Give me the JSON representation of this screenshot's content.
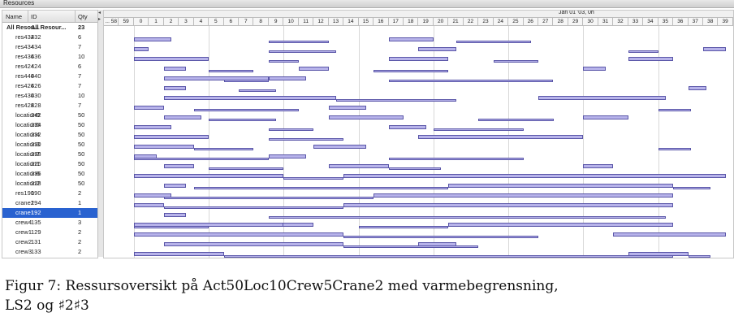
{
  "window": {
    "title": "Resources"
  },
  "table": {
    "headers": {
      "name": "Name",
      "id": "ID",
      "qty": "Qty"
    },
    "rows": [
      {
        "name": "All Resou...",
        "id": "All Resour...",
        "qty": "23",
        "bold": true
      },
      {
        "name": "res432",
        "id": "432",
        "qty": "6"
      },
      {
        "name": "res434",
        "id": "434",
        "qty": "7"
      },
      {
        "name": "res436",
        "id": "436",
        "qty": "10"
      },
      {
        "name": "res424",
        "id": "424",
        "qty": "6"
      },
      {
        "name": "res440",
        "id": "440",
        "qty": "7"
      },
      {
        "name": "res426",
        "id": "426",
        "qty": "7"
      },
      {
        "name": "res430",
        "id": "430",
        "qty": "10"
      },
      {
        "name": "res428",
        "id": "428",
        "qty": "7"
      },
      {
        "name": "location9",
        "id": "242",
        "qty": "50"
      },
      {
        "name": "location5",
        "id": "234",
        "qty": "50"
      },
      {
        "name": "location4",
        "id": "232",
        "qty": "50"
      },
      {
        "name": "location3",
        "id": "230",
        "qty": "50"
      },
      {
        "name": "location7",
        "id": "238",
        "qty": "50"
      },
      {
        "name": "location1",
        "id": "226",
        "qty": "50"
      },
      {
        "name": "location6",
        "id": "236",
        "qty": "50"
      },
      {
        "name": "location2",
        "id": "228",
        "qty": "50"
      },
      {
        "name": "res190",
        "id": "190",
        "qty": "2"
      },
      {
        "name": "crane2",
        "id": "194",
        "qty": "1"
      },
      {
        "name": "crane1",
        "id": "192",
        "qty": "1",
        "selected": true
      },
      {
        "name": "crew4",
        "id": "135",
        "qty": "3"
      },
      {
        "name": "crew1",
        "id": "129",
        "qty": "2"
      },
      {
        "name": "crew2",
        "id": "131",
        "qty": "2"
      },
      {
        "name": "crew3",
        "id": "133",
        "qty": "2"
      }
    ]
  },
  "gantt": {
    "date_label": "Jan 01 '03, 0h",
    "ticks": [
      "... 58",
      "59",
      "0",
      "1",
      "2",
      "3",
      "4",
      "5",
      "6",
      "7",
      "8",
      "9",
      "10",
      "11",
      "12",
      "13",
      "14",
      "15",
      "16",
      "17",
      "18",
      "19",
      "20",
      "21",
      "22",
      "23",
      "24",
      "25",
      "26",
      "27",
      "28",
      "29",
      "30",
      "31",
      "32",
      "33",
      "34",
      "35",
      "36",
      "37",
      "38",
      "39"
    ],
    "row_bars": [
      [],
      [
        [
          0,
          2.5
        ],
        [
          9,
          13
        ],
        [
          17,
          20
        ],
        [
          21.5,
          26.5
        ]
      ],
      [
        [
          0,
          1
        ],
        [
          9,
          13.5
        ],
        [
          19,
          21.5
        ],
        [
          33,
          35
        ],
        [
          38,
          39.5
        ]
      ],
      [
        [
          0,
          5
        ],
        [
          9,
          11
        ],
        [
          17,
          21
        ],
        [
          24,
          27
        ],
        [
          33,
          36
        ]
      ],
      [
        [
          2,
          3.5
        ],
        [
          5,
          8
        ],
        [
          11,
          13
        ],
        [
          16,
          21
        ],
        [
          30,
          31.5
        ]
      ],
      [
        [
          2,
          9
        ],
        [
          6,
          9
        ],
        [
          9,
          11.5
        ],
        [
          17,
          28
        ]
      ],
      [
        [
          2,
          3.5
        ],
        [
          7,
          9.5
        ],
        [
          37,
          38.2
        ]
      ],
      [
        [
          2,
          13.5
        ],
        [
          13.5,
          21.5
        ],
        [
          27,
          35.5
        ]
      ],
      [
        [
          0,
          2
        ],
        [
          4,
          11
        ],
        [
          13,
          15.5
        ],
        [
          35,
          37.2
        ]
      ],
      [
        [
          2,
          4.5
        ],
        [
          5,
          9.5
        ],
        [
          13,
          18
        ],
        [
          23,
          28
        ],
        [
          30,
          33
        ]
      ],
      [
        [
          0,
          2.5
        ],
        [
          9,
          12
        ],
        [
          17,
          19.5
        ],
        [
          20,
          26
        ]
      ],
      [
        [
          0,
          5
        ],
        [
          9,
          14
        ],
        [
          19,
          30
        ]
      ],
      [
        [
          0,
          4
        ],
        [
          4,
          8
        ],
        [
          12,
          15.5
        ],
        [
          35,
          37.2
        ]
      ],
      [
        [
          0,
          1.5
        ],
        [
          0,
          9
        ],
        [
          9,
          11.5
        ],
        [
          17,
          26
        ]
      ],
      [
        [
          2,
          4
        ],
        [
          5,
          10
        ],
        [
          13,
          17
        ],
        [
          17,
          20.5
        ],
        [
          30,
          32
        ]
      ],
      [
        [
          0,
          10
        ],
        [
          10,
          14
        ],
        [
          14,
          39.5
        ]
      ],
      [
        [
          2,
          3.5
        ],
        [
          4,
          21
        ],
        [
          21,
          36
        ],
        [
          36,
          38.5
        ]
      ],
      [
        [
          0,
          2.5
        ],
        [
          2,
          16
        ],
        [
          16,
          36
        ]
      ],
      [
        [
          0,
          2
        ],
        [
          2,
          14
        ],
        [
          14,
          36
        ]
      ],
      [
        [
          2,
          3.5
        ],
        [
          9,
          35.5
        ]
      ],
      [
        [
          0,
          12
        ],
        [
          0,
          5
        ],
        [
          0,
          10
        ],
        [
          15,
          21
        ],
        [
          21,
          36
        ]
      ],
      [
        [
          0,
          14
        ],
        [
          14,
          27
        ],
        [
          32,
          39.5
        ]
      ],
      [
        [
          2,
          14
        ],
        [
          14,
          23
        ],
        [
          19,
          21.5
        ]
      ],
      [
        [
          0,
          6
        ],
        [
          6,
          36
        ],
        [
          33,
          37
        ],
        [
          37,
          38.5
        ]
      ]
    ]
  },
  "caption": {
    "line1": "Figur 7: Ressursoversikt på Act50Loc10Crew5Crane2 med varmebegrensning,",
    "line2": "LS2 og ♯2♯3"
  }
}
